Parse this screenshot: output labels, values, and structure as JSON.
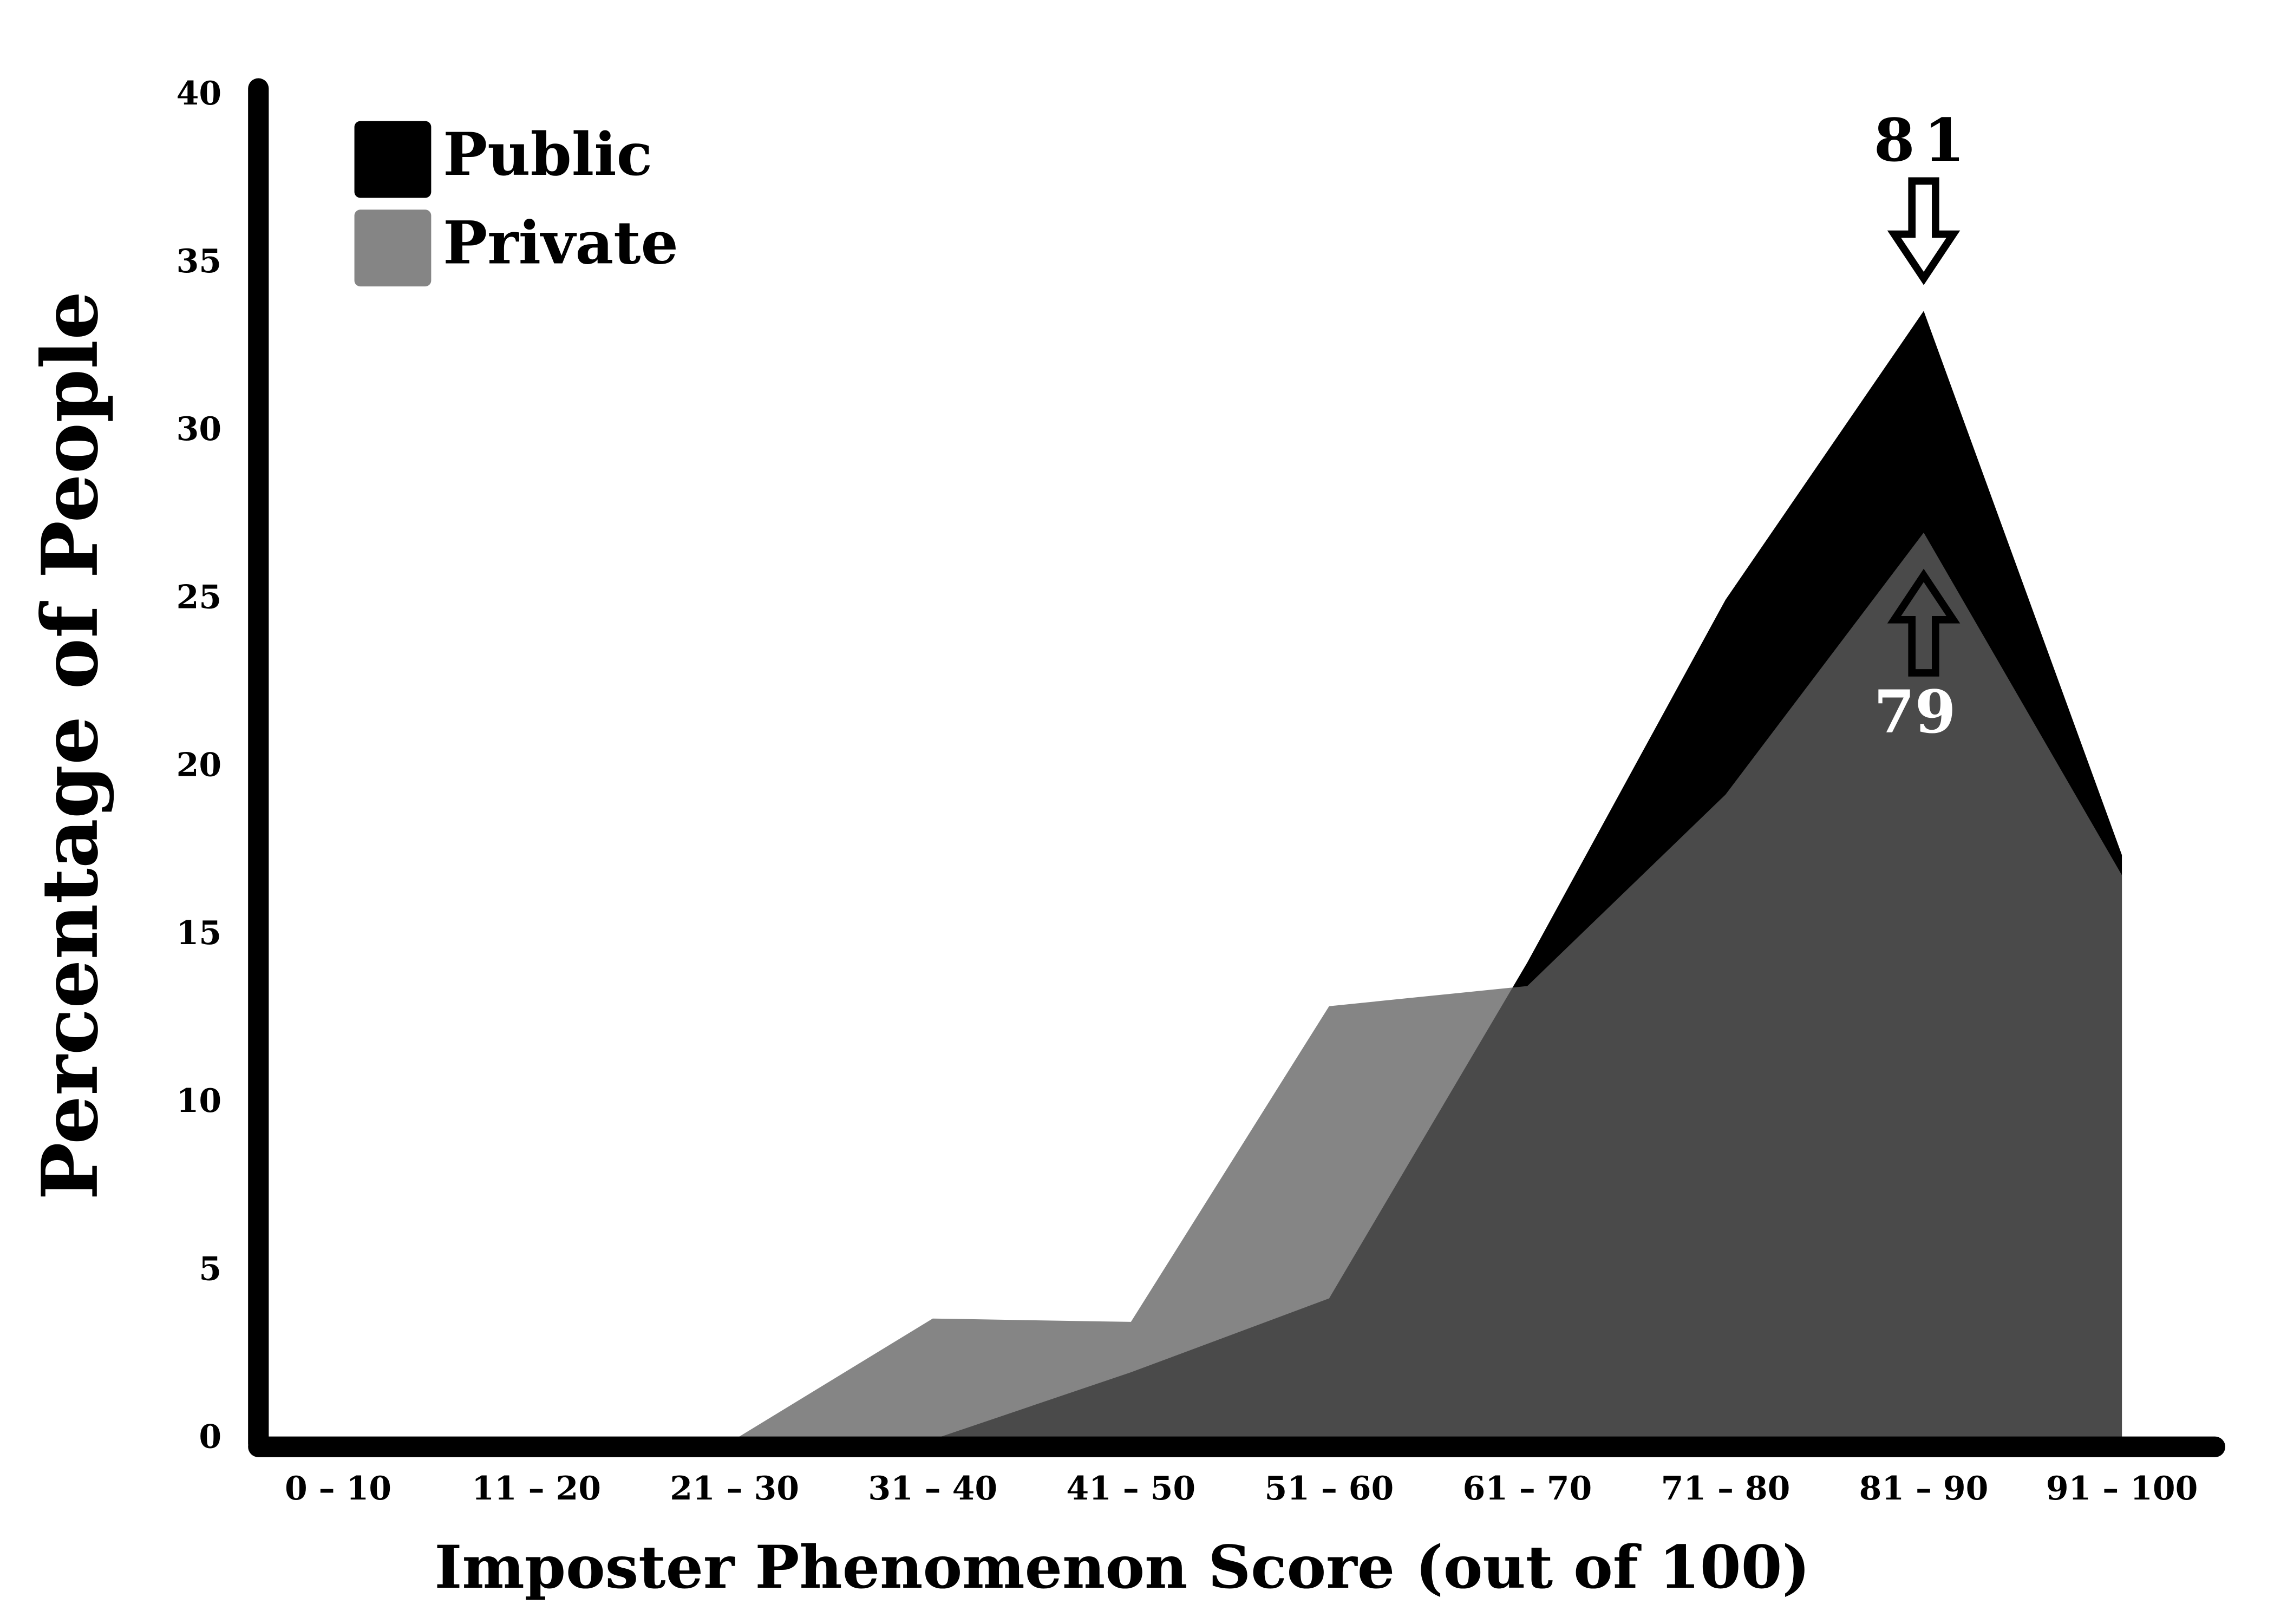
{
  "chart_data": {
    "type": "area",
    "xlabel": "Imposter Phenomenon Score (out of 100)",
    "ylabel": "Percentage of People",
    "categories": [
      "0 – 10",
      "11 – 20",
      "21 – 30",
      "31 – 40",
      "41 – 50",
      "51 – 60",
      "61 – 70",
      "71 – 80",
      "81 – 90",
      "91 – 100"
    ],
    "series": [
      {
        "name": "Public",
        "color": "#000000",
        "opacity": 1,
        "values": [
          0,
          0,
          0,
          0,
          2,
          4.2,
          14.2,
          25,
          33.6,
          17.4
        ]
      },
      {
        "name": "Private",
        "color": "#606060",
        "opacity": 0.77,
        "values": [
          0,
          0,
          0,
          3.6,
          3.5,
          12.9,
          13.5,
          19.2,
          27,
          16.8
        ]
      }
    ],
    "ylim": [
      0,
      40
    ],
    "yticks": [
      0,
      5,
      10,
      15,
      20,
      25,
      30,
      35,
      40
    ],
    "legend": "upper left",
    "annotations": [
      {
        "text": "81",
        "series": 0,
        "index": 8,
        "color": "#000000",
        "position": "above"
      },
      {
        "text": "79",
        "series": 1,
        "index": 8,
        "color": "#ffffff",
        "position": "below"
      }
    ]
  }
}
